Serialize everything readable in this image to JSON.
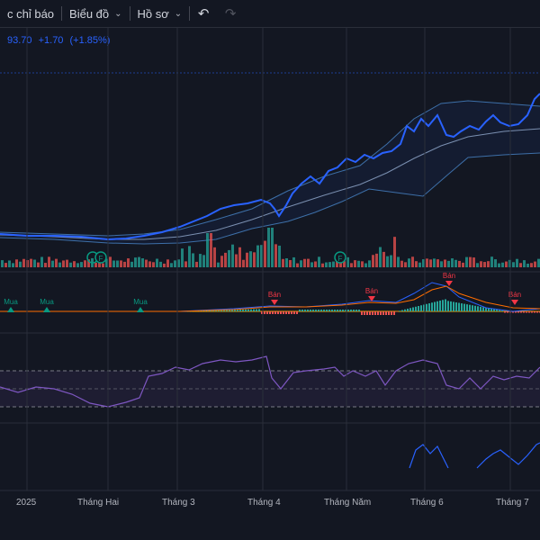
{
  "toolbar": {
    "indicators_label": "c chỉ báo",
    "chart_label": "Biểu đồ",
    "profile_label": "Hồ sơ",
    "undo_icon": "undo-icon",
    "redo_icon": "redo-icon"
  },
  "legend": {
    "price": "93.70",
    "change": "+1.70",
    "change_pct": "(+1.85%)"
  },
  "signals": {
    "buy": "Mua",
    "sell": "Bán",
    "flag": "F"
  },
  "colors": {
    "background": "#131722",
    "price_line": "#2962ff",
    "band": "#3d6fa8",
    "volume_up": "#26a69a",
    "volume_down": "#ef5350",
    "buy": "#089981",
    "sell": "#f23645",
    "rsi": "#7e57c2"
  },
  "time_axis": {
    "labels": [
      "2025",
      "Tháng Hai",
      "Tháng 3",
      "Tháng 4",
      "Tháng Năm",
      "Tháng 6",
      "Tháng 7"
    ]
  }
}
